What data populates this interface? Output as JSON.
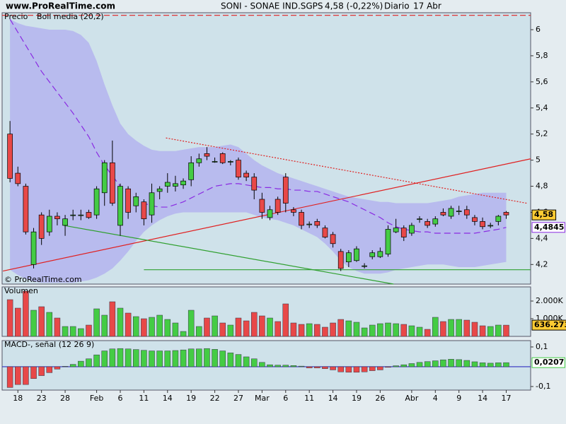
{
  "header": {
    "site": "www.ProRealTime.com",
    "symbol": "SONI - SONAE IND.SGPS",
    "change": "4,58 (-0,22%)",
    "period": "Diario",
    "date": "17 Abr"
  },
  "chart_data": [
    {
      "type": "candlestick",
      "series": [
        {
          "name": "Precio",
          "color": "#000000",
          "up_color": "#44cc44",
          "down_color": "#e84848",
          "open": [
            5.2,
            4.9,
            4.8,
            4.2,
            4.58,
            4.45,
            4.57,
            4.5,
            4.58,
            4.58,
            4.6,
            4.58,
            4.75,
            4.98,
            4.5,
            4.78,
            4.65,
            4.68,
            4.58,
            4.76,
            4.8,
            4.8,
            4.81,
            4.85,
            4.98,
            5.05,
            4.99,
            5.05,
            4.99,
            5.0,
            4.9,
            4.87,
            4.7,
            4.56,
            4.7,
            4.87,
            4.62,
            4.6,
            4.51,
            4.53,
            4.48,
            4.43,
            4.3,
            4.22,
            4.23,
            4.19,
            4.26,
            4.26,
            4.28,
            4.45,
            4.48,
            4.44,
            4.55,
            4.53,
            4.51,
            4.6,
            4.57,
            4.61,
            4.62,
            4.56,
            4.53,
            4.5,
            4.53,
            4.6
          ],
          "high": [
            5.3,
            4.95,
            4.82,
            4.48,
            4.6,
            4.62,
            4.6,
            4.58,
            4.62,
            4.62,
            4.62,
            4.8,
            5.0,
            5.15,
            4.82,
            4.8,
            4.75,
            4.7,
            4.82,
            4.8,
            4.9,
            4.88,
            4.86,
            5.03,
            5.05,
            5.1,
            5.02,
            5.06,
            5.0,
            5.02,
            4.92,
            4.9,
            4.75,
            4.65,
            4.72,
            4.9,
            4.64,
            4.62,
            4.53,
            4.55,
            4.5,
            4.45,
            4.32,
            4.31,
            4.34,
            4.21,
            4.31,
            4.33,
            4.5,
            4.55,
            4.5,
            4.52,
            4.57,
            4.55,
            4.57,
            4.63,
            4.65,
            4.65,
            4.65,
            4.58,
            4.56,
            4.52,
            4.58,
            4.61
          ],
          "low": [
            4.83,
            4.8,
            4.43,
            4.17,
            4.35,
            4.42,
            4.5,
            4.42,
            4.54,
            4.54,
            4.55,
            4.55,
            4.65,
            4.65,
            4.42,
            4.55,
            4.6,
            4.5,
            4.52,
            4.7,
            4.75,
            4.76,
            4.78,
            4.8,
            4.95,
            5.0,
            4.98,
            4.97,
            4.96,
            4.85,
            4.84,
            4.7,
            4.55,
            4.54,
            4.58,
            4.6,
            4.57,
            4.47,
            4.48,
            4.48,
            4.4,
            4.33,
            4.15,
            4.18,
            4.22,
            4.17,
            4.24,
            4.25,
            4.26,
            4.44,
            4.38,
            4.42,
            4.52,
            4.48,
            4.49,
            4.57,
            4.55,
            4.58,
            4.55,
            4.5,
            4.47,
            4.48,
            4.5,
            4.55
          ],
          "close": [
            4.86,
            4.82,
            4.45,
            4.45,
            4.4,
            4.57,
            4.55,
            4.55,
            4.58,
            4.58,
            4.56,
            4.78,
            4.98,
            4.67,
            4.8,
            4.6,
            4.72,
            4.55,
            4.75,
            4.78,
            4.83,
            4.82,
            4.84,
            4.98,
            5.01,
            5.03,
            4.99,
            4.98,
            4.99,
            4.87,
            4.87,
            4.77,
            4.6,
            4.62,
            4.6,
            4.67,
            4.6,
            4.5,
            4.51,
            4.5,
            4.41,
            4.36,
            4.17,
            4.29,
            4.32,
            4.19,
            4.29,
            4.3,
            4.47,
            4.48,
            4.41,
            4.5,
            4.55,
            4.5,
            4.55,
            4.58,
            4.63,
            4.61,
            4.58,
            4.53,
            4.49,
            4.5,
            4.57,
            4.58
          ],
          "last_label": "4,58",
          "label_color": "#ffcc33"
        },
        {
          "name": "Boll media (20,2)",
          "color": "#8a2be2",
          "band_color": "#b4b4ee",
          "upper": [
            6.08,
            6.05,
            6.03,
            6.02,
            6.01,
            6.0,
            6.0,
            6.0,
            5.99,
            5.96,
            5.9,
            5.76,
            5.58,
            5.42,
            5.28,
            5.2,
            5.15,
            5.11,
            5.08,
            5.07,
            5.07,
            5.07,
            5.08,
            5.09,
            5.1,
            5.1,
            5.1,
            5.11,
            5.12,
            5.1,
            5.05,
            5.0,
            4.96,
            4.93,
            4.9,
            4.88,
            4.86,
            4.84,
            4.82,
            4.8,
            4.78,
            4.76,
            4.74,
            4.72,
            4.71,
            4.7,
            4.69,
            4.68,
            4.68,
            4.67,
            4.67,
            4.67,
            4.67,
            4.67,
            4.68,
            4.69,
            4.7,
            4.72,
            4.73,
            4.74,
            4.75,
            4.75,
            4.75,
            4.75
          ],
          "middle": [
            6.08,
            5.98,
            5.88,
            5.78,
            5.68,
            5.6,
            5.52,
            5.44,
            5.36,
            5.27,
            5.18,
            5.06,
            4.96,
            4.88,
            4.8,
            4.74,
            4.7,
            4.67,
            4.65,
            4.64,
            4.64,
            4.66,
            4.68,
            4.71,
            4.74,
            4.77,
            4.8,
            4.81,
            4.82,
            4.82,
            4.81,
            4.8,
            4.79,
            4.79,
            4.78,
            4.78,
            4.77,
            4.77,
            4.76,
            4.76,
            4.74,
            4.72,
            4.7,
            4.68,
            4.65,
            4.62,
            4.59,
            4.56,
            4.52,
            4.49,
            4.47,
            4.46,
            4.45,
            4.45,
            4.44,
            4.44,
            4.44,
            4.44,
            4.44,
            4.44,
            4.45,
            4.46,
            4.47,
            4.4845
          ],
          "lower": [
            4.16,
            4.12,
            4.09,
            4.07,
            4.06,
            4.06,
            4.06,
            4.06,
            4.06,
            4.07,
            4.08,
            4.1,
            4.13,
            4.17,
            4.23,
            4.3,
            4.38,
            4.45,
            4.5,
            4.54,
            4.57,
            4.59,
            4.6,
            4.6,
            4.6,
            4.6,
            4.6,
            4.6,
            4.6,
            4.6,
            4.6,
            4.58,
            4.56,
            4.55,
            4.54,
            4.52,
            4.5,
            4.47,
            4.44,
            4.41,
            4.36,
            4.3,
            4.23,
            4.18,
            4.15,
            4.13,
            4.13,
            4.13,
            4.14,
            4.16,
            4.17,
            4.18,
            4.19,
            4.2,
            4.2,
            4.2,
            4.19,
            4.18,
            4.18,
            4.18,
            4.19,
            4.2,
            4.21,
            4.22
          ],
          "last_label": "4,4845",
          "label_color": "#ffffff"
        }
      ],
      "trendlines": [
        {
          "color": "#e02020",
          "style": "solid",
          "x": [
            -0.9,
            66.1
          ],
          "y": [
            4.15,
            5.01
          ]
        },
        {
          "color": "#e02020",
          "style": "dotted",
          "x": [
            19.8,
            65.6
          ],
          "y": [
            5.17,
            4.67
          ]
        },
        {
          "color": "#30a030",
          "style": "solid",
          "x": [
            6.8,
            48.7
          ],
          "y": [
            4.5,
            4.05
          ]
        },
        {
          "color": "#30a030",
          "style": "solid",
          "x": [
            17,
            66.1
          ],
          "y": [
            4.16,
            4.16
          ]
        },
        {
          "color": "#e02020",
          "style": "dashed",
          "x": [
            -1,
            66.1
          ],
          "y": [
            6.11,
            6.11
          ]
        }
      ],
      "annotation": "© ProRealTime.com",
      "xlim": [
        -1,
        66.1
      ],
      "ylim": [
        4.05,
        6.13
      ],
      "yticks": [
        {
          "value": 4.2,
          "label": "4,2"
        },
        {
          "value": 4.4,
          "label": "4,4"
        },
        {
          "value": 4.6,
          "label": "4,6"
        },
        {
          "value": 4.8,
          "label": "4,8"
        },
        5,
        {
          "value": 5.2,
          "label": "5,2"
        },
        {
          "value": 5.4,
          "label": "5,4"
        },
        {
          "value": 5.6,
          "label": "5,6"
        },
        {
          "value": 5.8,
          "label": "5,8"
        },
        6
      ]
    },
    {
      "type": "bar",
      "title": "Volumen",
      "title_color": "#cc3333",
      "color_by": "candle",
      "up_color": "#44cc44",
      "down_color": "#e84848",
      "values": [
        2080,
        1600,
        2560,
        1480,
        1680,
        1360,
        1040,
        560,
        560,
        440,
        640,
        1560,
        1200,
        1960,
        1600,
        1320,
        1120,
        1000,
        1080,
        1200,
        960,
        760,
        280,
        1480,
        560,
        1040,
        1160,
        760,
        640,
        1040,
        880,
        1360,
        1160,
        1040,
        840,
        1840,
        760,
        680,
        720,
        680,
        520,
        760,
        960,
        880,
        800,
        480,
        640,
        720,
        760,
        720,
        680,
        600,
        520,
        400,
        1080,
        840,
        960,
        960,
        920,
        800,
        600,
        560,
        640,
        636.273
      ],
      "last_label": "636.273",
      "label_color": "#ffcc33",
      "xlim": [
        -1,
        66.1
      ],
      "ylim": [
        0,
        2800
      ],
      "yticks": [
        {
          "value": 1000,
          "label": "1.000K"
        },
        {
          "value": 2000,
          "label": "2.000K"
        }
      ]
    },
    {
      "type": "bar",
      "title": "MACD-, señal (12 26 9)",
      "title_color": "#202080",
      "color_by": "sign",
      "up_color": "#44cc44",
      "down_color": "#e84848",
      "zero_color": "#3030c0",
      "values": [
        -0.105,
        -0.09,
        -0.09,
        -0.06,
        -0.045,
        -0.03,
        -0.012,
        0.002,
        0.012,
        0.028,
        0.04,
        0.06,
        0.08,
        0.09,
        0.092,
        0.09,
        0.087,
        0.083,
        0.08,
        0.08,
        0.08,
        0.082,
        0.085,
        0.09,
        0.09,
        0.092,
        0.088,
        0.08,
        0.07,
        0.062,
        0.05,
        0.04,
        0.022,
        0.01,
        0.008,
        0.008,
        0.006,
        0.003,
        -0.006,
        -0.006,
        -0.01,
        -0.016,
        -0.026,
        -0.028,
        -0.028,
        -0.026,
        -0.02,
        -0.016,
        -0.003,
        0.005,
        0.01,
        0.016,
        0.022,
        0.026,
        0.03,
        0.035,
        0.038,
        0.036,
        0.032,
        0.025,
        0.02,
        0.018,
        0.02,
        0.0207
      ],
      "last_label": "0,0207",
      "label_color": "#ffffff",
      "xlim": [
        -1,
        66.1
      ],
      "ylim": [
        -0.118,
        0.132
      ],
      "yticks": [
        {
          "value": -0.1,
          "label": "-0,1"
        },
        {
          "value": 0.1,
          "label": "0,1"
        }
      ],
      "xticks": [
        {
          "value": 1,
          "label": "18"
        },
        {
          "value": 4,
          "label": "23"
        },
        {
          "value": 7,
          "label": "28"
        },
        {
          "value": 11,
          "label": "Feb"
        },
        {
          "value": 14,
          "label": "6"
        },
        {
          "value": 17,
          "label": "11"
        },
        {
          "value": 20,
          "label": "14"
        },
        {
          "value": 23,
          "label": "19"
        },
        {
          "value": 26,
          "label": "22"
        },
        {
          "value": 29,
          "label": "27"
        },
        {
          "value": 32,
          "label": "Mar"
        },
        {
          "value": 35,
          "label": "6"
        },
        {
          "value": 38,
          "label": "11"
        },
        {
          "value": 41,
          "label": "14"
        },
        {
          "value": 44,
          "label": "19"
        },
        {
          "value": 47,
          "label": "26"
        },
        {
          "value": 51,
          "label": "Abr"
        },
        {
          "value": 54,
          "label": "4"
        },
        {
          "value": 57,
          "label": "9"
        },
        {
          "value": 60,
          "label": "14"
        },
        {
          "value": 63,
          "label": "17"
        }
      ]
    }
  ]
}
